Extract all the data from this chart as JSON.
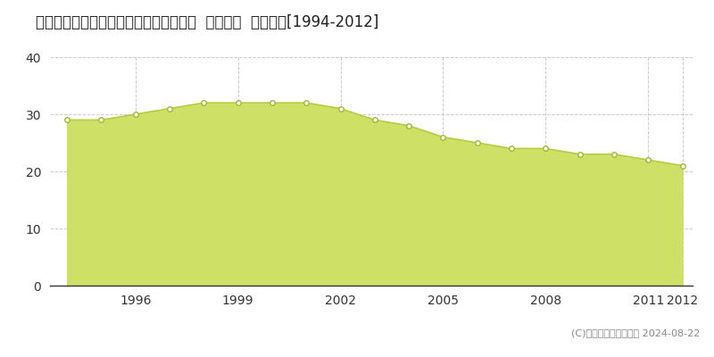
{
  "title": "鳥取県鳥取市的場字マニトバ１５７番３  地価公示  地価推移[1994-2012]",
  "years": [
    1994,
    1995,
    1996,
    1997,
    1998,
    1999,
    2000,
    2001,
    2002,
    2003,
    2004,
    2005,
    2006,
    2007,
    2008,
    2009,
    2010,
    2011,
    2012
  ],
  "values": [
    29,
    29,
    30,
    31,
    32,
    32,
    32,
    32,
    31,
    29,
    28,
    26,
    25,
    24,
    24,
    23,
    23,
    22,
    21
  ],
  "ylim": [
    0,
    40
  ],
  "yticks": [
    0,
    10,
    20,
    30,
    40
  ],
  "fill_color": "#cfe066",
  "line_color": "#b8cc40",
  "marker_facecolor": "#ffffff",
  "marker_edgecolor": "#a0b830",
  "bg_color": "#ffffff",
  "grid_color": "#cccccc",
  "legend_square_color": "#cfe066",
  "legend_square_edgecolor": "#999999",
  "copyright_text": "(C)土地価格ドットコム 2024-08-22",
  "title_fontsize": 12,
  "tick_fontsize": 10,
  "legend_fontsize": 9,
  "copyright_fontsize": 8,
  "xtick_years": [
    1996,
    1999,
    2002,
    2005,
    2008,
    2011,
    2012
  ]
}
